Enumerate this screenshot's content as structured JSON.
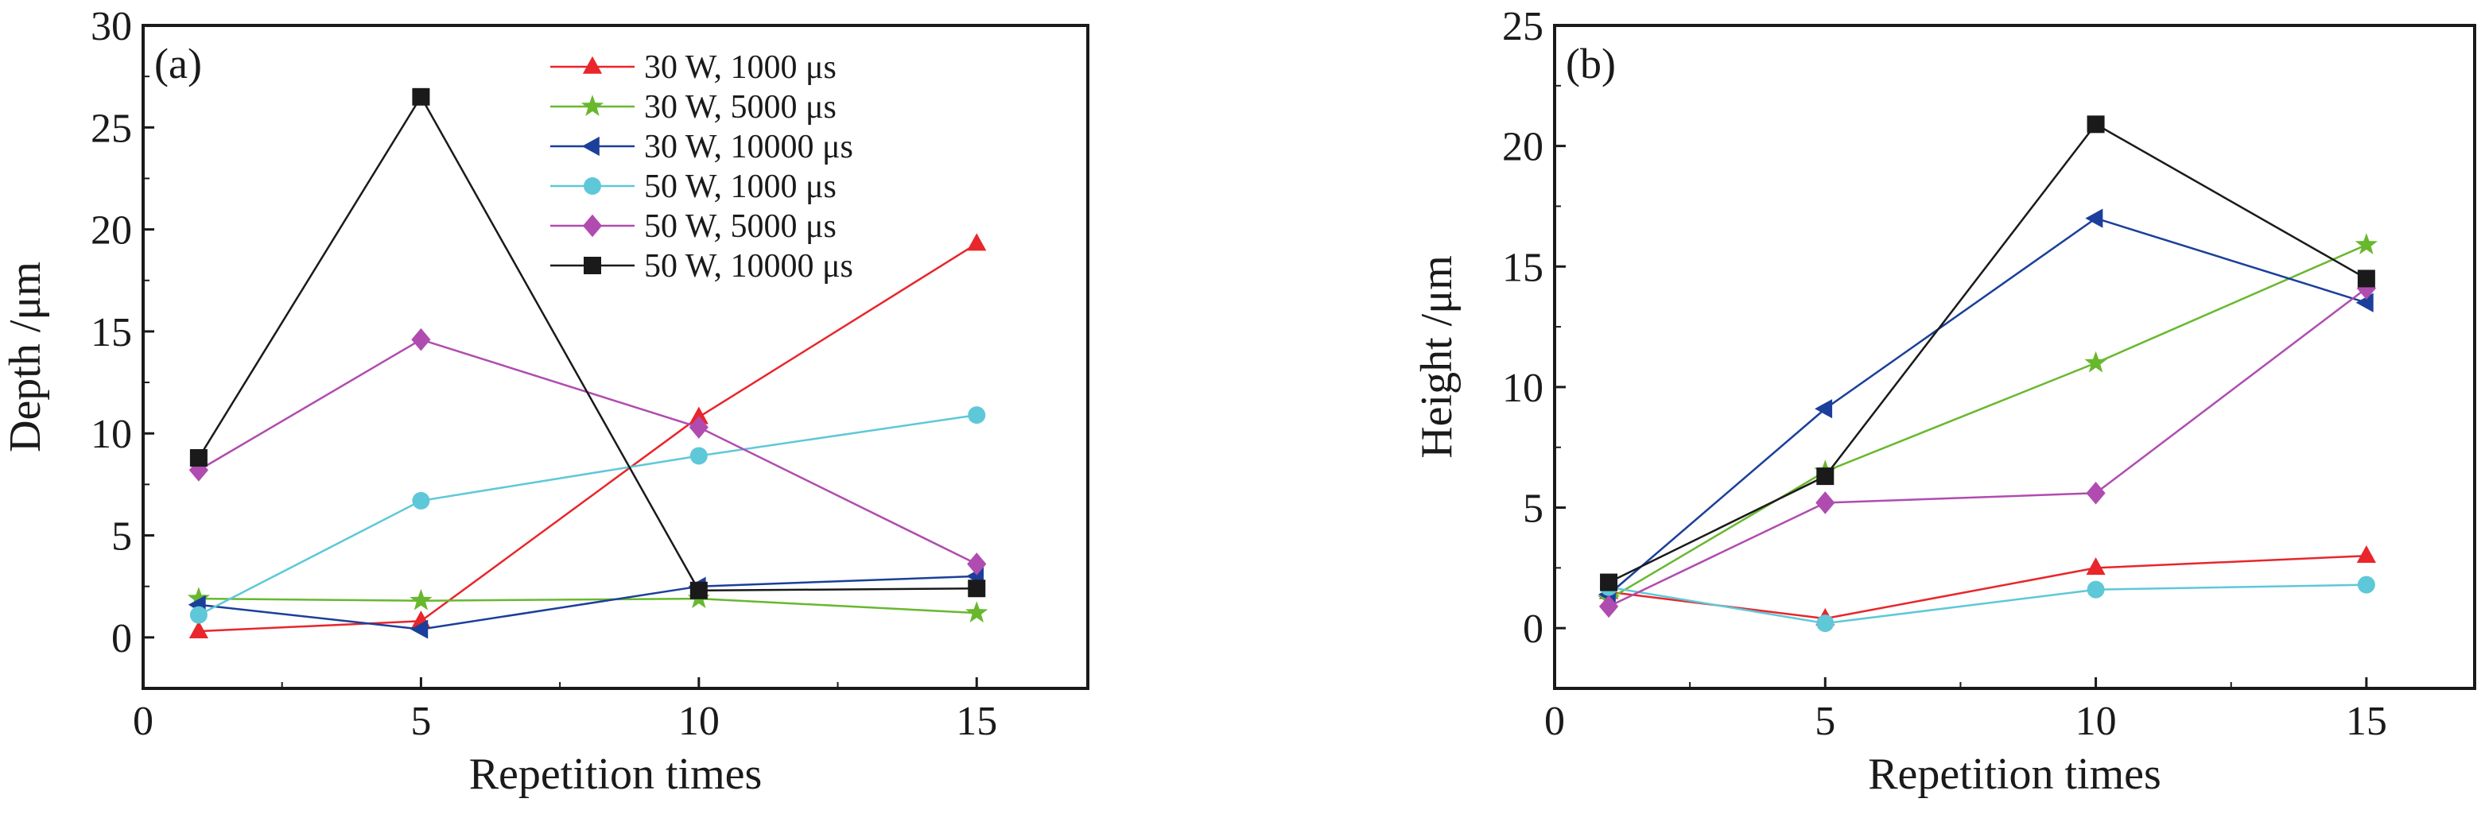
{
  "colors": {
    "red": "#e8262b",
    "green": "#68b82e",
    "blue": "#1b3f9a",
    "cyan": "#5ec8d8",
    "purple": "#b04cb0",
    "black": "#1a1a1a",
    "frame": "#1a1a1a"
  },
  "chart_data": [
    {
      "type": "line",
      "panel_label": "(a)",
      "xlabel": "Repetition times",
      "ylabel": "Depth /μm",
      "xlim": [
        0,
        17
      ],
      "ylim": [
        -2.5,
        30
      ],
      "xticks": [
        0,
        5,
        10,
        15
      ],
      "yticks": [
        0,
        5,
        10,
        15,
        20,
        25,
        30
      ],
      "x": [
        1,
        5,
        10,
        15
      ],
      "legend_position": "top-right",
      "series": [
        {
          "name": "30 W, 1000 μs",
          "color": "red",
          "marker": "triangle-up",
          "values": [
            0.3,
            0.8,
            10.8,
            19.3
          ]
        },
        {
          "name": "30 W, 5000 μs",
          "color": "green",
          "marker": "star",
          "values": [
            1.9,
            1.8,
            1.9,
            1.2
          ]
        },
        {
          "name": "30 W, 10000 μs",
          "color": "blue",
          "marker": "triangle-left",
          "values": [
            1.6,
            0.4,
            2.5,
            3.0
          ]
        },
        {
          "name": "50 W, 1000 μs",
          "color": "cyan",
          "marker": "circle",
          "values": [
            1.1,
            6.7,
            8.9,
            10.9
          ]
        },
        {
          "name": "50 W, 5000 μs",
          "color": "purple",
          "marker": "diamond",
          "values": [
            8.2,
            14.6,
            10.3,
            3.6
          ]
        },
        {
          "name": "50 W, 10000 μs",
          "color": "black",
          "marker": "square",
          "values": [
            8.8,
            26.5,
            2.3,
            2.4
          ]
        }
      ]
    },
    {
      "type": "line",
      "panel_label": "(b)",
      "xlabel": "Repetition times",
      "ylabel": "Height /μm",
      "xlim": [
        0,
        17
      ],
      "ylim": [
        -2.5,
        25
      ],
      "xticks": [
        0,
        5,
        10,
        15
      ],
      "yticks": [
        0,
        5,
        10,
        15,
        20,
        25
      ],
      "x": [
        1,
        5,
        10,
        15
      ],
      "series": [
        {
          "name": "30 W, 1000 μs",
          "color": "red",
          "marker": "triangle-up",
          "values": [
            1.5,
            0.4,
            2.5,
            3.0
          ]
        },
        {
          "name": "30 W, 5000 μs",
          "color": "green",
          "marker": "star",
          "values": [
            1.2,
            6.5,
            11.0,
            15.9
          ]
        },
        {
          "name": "30 W, 10000 μs",
          "color": "blue",
          "marker": "triangle-left",
          "values": [
            1.4,
            9.1,
            17.0,
            13.5
          ]
        },
        {
          "name": "50 W, 1000 μs",
          "color": "cyan",
          "marker": "circle",
          "values": [
            1.7,
            0.2,
            1.6,
            1.8
          ]
        },
        {
          "name": "50 W, 5000 μs",
          "color": "purple",
          "marker": "diamond",
          "values": [
            0.9,
            5.2,
            5.6,
            14.1
          ]
        },
        {
          "name": "50 W, 10000 μs",
          "color": "black",
          "marker": "square",
          "values": [
            1.9,
            6.3,
            20.9,
            14.5
          ]
        }
      ]
    }
  ]
}
